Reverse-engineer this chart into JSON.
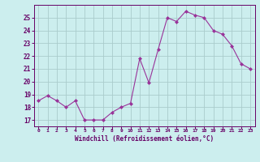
{
  "x": [
    0,
    1,
    2,
    3,
    4,
    5,
    6,
    7,
    8,
    9,
    10,
    11,
    12,
    13,
    14,
    15,
    16,
    17,
    18,
    19,
    20,
    21,
    22,
    23
  ],
  "y": [
    18.5,
    18.9,
    18.5,
    18.0,
    18.5,
    17.0,
    17.0,
    17.0,
    17.6,
    18.0,
    18.3,
    21.8,
    19.9,
    22.5,
    25.0,
    24.7,
    25.5,
    25.2,
    25.0,
    24.0,
    23.7,
    22.8,
    21.4,
    21.0
  ],
  "line_color": "#993399",
  "marker": "D",
  "marker_size": 2,
  "bg_color": "#cceeee",
  "grid_color": "#aacccc",
  "xlabel": "Windchill (Refroidissement éolien,°C)",
  "xlabel_color": "#660066",
  "tick_color": "#660066",
  "ylim": [
    16.5,
    26.0
  ],
  "yticks": [
    17,
    18,
    19,
    20,
    21,
    22,
    23,
    24,
    25
  ],
  "xticks": [
    0,
    1,
    2,
    3,
    4,
    5,
    6,
    7,
    8,
    9,
    10,
    11,
    12,
    13,
    14,
    15,
    16,
    17,
    18,
    19,
    20,
    21,
    22,
    23
  ],
  "xlim": [
    -0.5,
    23.5
  ]
}
